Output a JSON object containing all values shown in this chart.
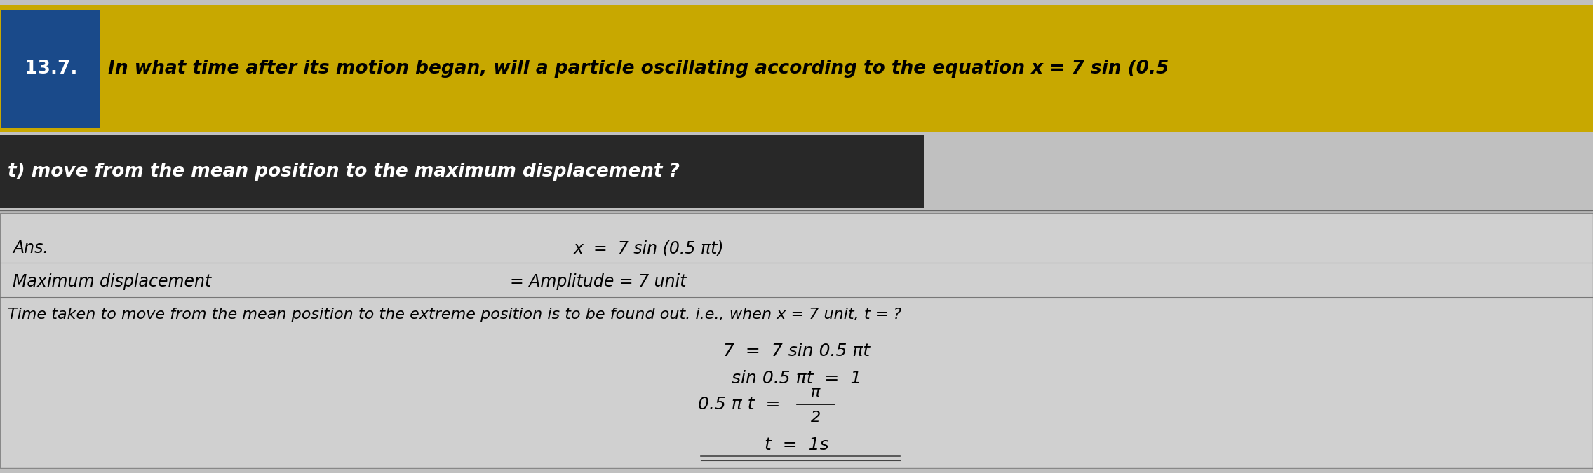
{
  "bg_color": "#c0c0c0",
  "header_bg": "#c8a800",
  "header_text_color": "#000000",
  "header_number_bg": "#1a4a8a",
  "header_number_color": "#ffffff",
  "header_number": "13.7.",
  "header_line1": "In what time after its motion began, will a particle oscillating according to the equation x = 7 sin (0.5",
  "header_line2": "t) move from the mean position to the maximum displacement ?",
  "answer_bg": "#d0d0d0",
  "ans_label": "Ans.",
  "line1_eq": "x  =  7 sin (0.5 πt)",
  "line2_label": "Maximum displacement",
  "line2_eq": "= Amplitude = 7 unit",
  "line3": "Time taken to move from the mean position to the extreme position is to be found out. i.e., when x = 7 unit, t = ?",
  "eq1": "7  =  7 sin 0.5 πt",
  "eq2": "sin 0.5 πt  =  1",
  "eq3_left": "0.5 π t  =",
  "eq3_frac_num": "π",
  "eq3_frac_den": "2",
  "eq4": "t  =  1s",
  "font_size_header": 19,
  "font_size_body": 17,
  "font_size_eq": 18,
  "text_color": "#000000"
}
